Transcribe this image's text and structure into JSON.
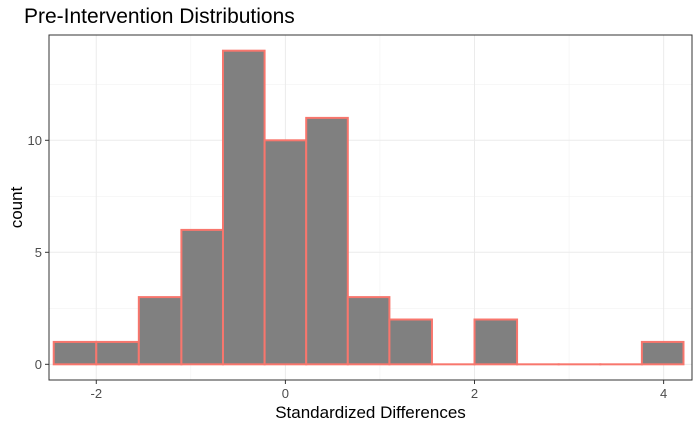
{
  "chart_data": {
    "type": "bar",
    "title": "Pre-Intervention Distributions",
    "xlabel": "Standardized Differences",
    "ylabel": "count",
    "xlim": [
      -2.5,
      4.3
    ],
    "ylim": [
      -0.7,
      14.7
    ],
    "x_ticks": [
      -2,
      0,
      2,
      4
    ],
    "x_tick_labels": [
      "-2",
      "0",
      "2",
      "4"
    ],
    "y_ticks": [
      0,
      5,
      10
    ],
    "y_tick_labels": [
      "0",
      "5",
      "10"
    ],
    "bins": [
      {
        "start": -2.45,
        "end": -2.0,
        "count": 1
      },
      {
        "start": -2.0,
        "end": -1.55,
        "count": 1
      },
      {
        "start": -1.55,
        "end": -1.1,
        "count": 3
      },
      {
        "start": -1.1,
        "end": -0.66,
        "count": 6
      },
      {
        "start": -0.66,
        "end": -0.22,
        "count": 14
      },
      {
        "start": -0.22,
        "end": 0.22,
        "count": 10
      },
      {
        "start": 0.22,
        "end": 0.66,
        "count": 11
      },
      {
        "start": 0.66,
        "end": 1.1,
        "count": 3
      },
      {
        "start": 1.1,
        "end": 1.55,
        "count": 2
      },
      {
        "start": 1.55,
        "end": 2.0,
        "count": 0
      },
      {
        "start": 2.0,
        "end": 2.45,
        "count": 2
      },
      {
        "start": 2.45,
        "end": 2.89,
        "count": 0
      },
      {
        "start": 2.89,
        "end": 3.33,
        "count": 0
      },
      {
        "start": 3.33,
        "end": 3.77,
        "count": 0
      },
      {
        "start": 3.77,
        "end": 4.21,
        "count": 1
      }
    ],
    "bar_fill": "#808080",
    "bar_stroke": "#f8766d",
    "grid": true,
    "theme": "bw"
  }
}
